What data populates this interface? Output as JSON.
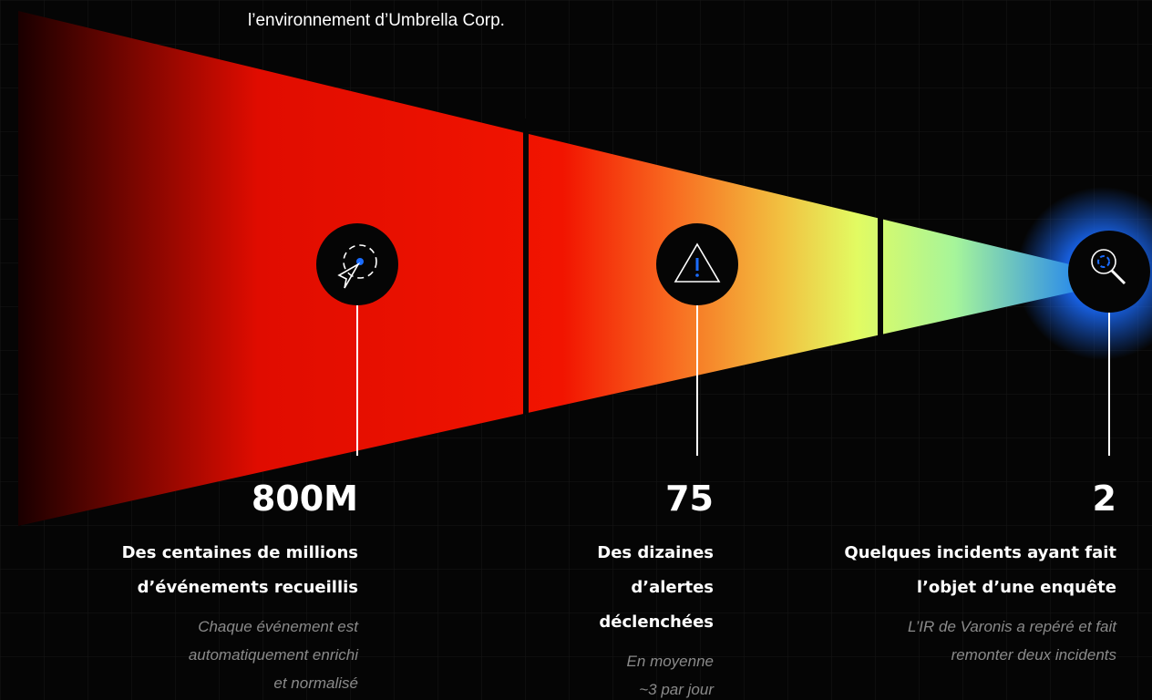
{
  "header": {
    "text": "l’environnement d’Umbrella Corp."
  },
  "stages": [
    {
      "number": "800M",
      "title": [
        "Des centaines de millions",
        "d’événements recueillis"
      ],
      "note": [
        "Chaque événement est",
        "automatiquement enrichi",
        "et normalisé"
      ]
    },
    {
      "number": "75",
      "title": [
        "Des dizaines",
        "d’alertes",
        "déclenchées"
      ],
      "note": [
        "En moyenne",
        "~3 par jour"
      ]
    },
    {
      "number": "2",
      "title": [
        "Quelques incidents ayant fait",
        "l’objet d’une enquête"
      ],
      "note": [
        "L’IR de Varonis a repéré et fait",
        "remonter deux incidents"
      ]
    }
  ]
}
